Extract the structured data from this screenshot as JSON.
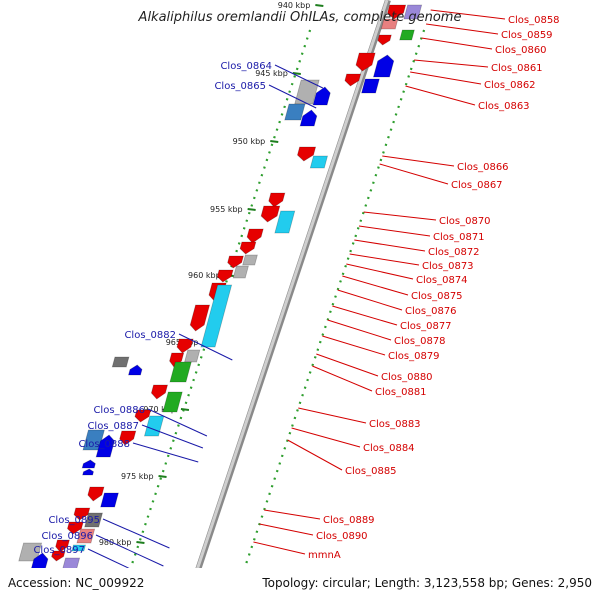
{
  "title": "Alkaliphilus oremlandii OhILAs, complete genome",
  "footer": {
    "accession": "Accession: NC_009922",
    "topology": "Topology: circular; Length: 3,123,558 bp; Genes: 2,950"
  },
  "scale": [
    {
      "label": "940 kbp"
    },
    {
      "label": "945 kbp"
    },
    {
      "label": "950 kbp"
    },
    {
      "label": "955 kbp"
    },
    {
      "label": "960 kbp"
    },
    {
      "label": "965 kbp"
    },
    {
      "label": "970 kbp"
    },
    {
      "label": "975 kbp"
    },
    {
      "label": "980 kbp"
    }
  ],
  "colors": {
    "red": "#e60000",
    "blue": "#0000e6",
    "cyan": "#22ccee",
    "green": "#22aa22",
    "gray": "#b0b0b0",
    "steelblue": "#3a7fc0",
    "darkgray": "#707070",
    "pink": "#e88080",
    "lilac": "#9a88d8",
    "label_red": "#d40000",
    "label_blue": "#1a1aa8"
  },
  "genes_right": [
    {
      "name": "Clos_0858"
    },
    {
      "name": "Clos_0859"
    },
    {
      "name": "Clos_0860"
    },
    {
      "name": "Clos_0861"
    },
    {
      "name": "Clos_0862"
    },
    {
      "name": "Clos_0863"
    },
    {
      "name": "Clos_0866"
    },
    {
      "name": "Clos_0867"
    },
    {
      "name": "Clos_0870"
    },
    {
      "name": "Clos_0871"
    },
    {
      "name": "Clos_0872"
    },
    {
      "name": "Clos_0873"
    },
    {
      "name": "Clos_0874"
    },
    {
      "name": "Clos_0875"
    },
    {
      "name": "Clos_0876"
    },
    {
      "name": "Clos_0877"
    },
    {
      "name": "Clos_0878"
    },
    {
      "name": "Clos_0879"
    },
    {
      "name": "Clos_0880"
    },
    {
      "name": "Clos_0881"
    },
    {
      "name": "Clos_0883"
    },
    {
      "name": "Clos_0884"
    },
    {
      "name": "Clos_0885"
    },
    {
      "name": "Clos_0889"
    },
    {
      "name": "Clos_0890"
    },
    {
      "name": "mmnA"
    }
  ],
  "genes_left": [
    {
      "name": "Clos_0864"
    },
    {
      "name": "Clos_0865"
    },
    {
      "name": "Clos_0882"
    },
    {
      "name": "Clos_0886"
    },
    {
      "name": "Clos_0887"
    },
    {
      "name": "Clos_0888"
    },
    {
      "name": "Clos_0895"
    },
    {
      "name": "Clos_0896"
    },
    {
      "name": "Clos_0897"
    }
  ]
}
